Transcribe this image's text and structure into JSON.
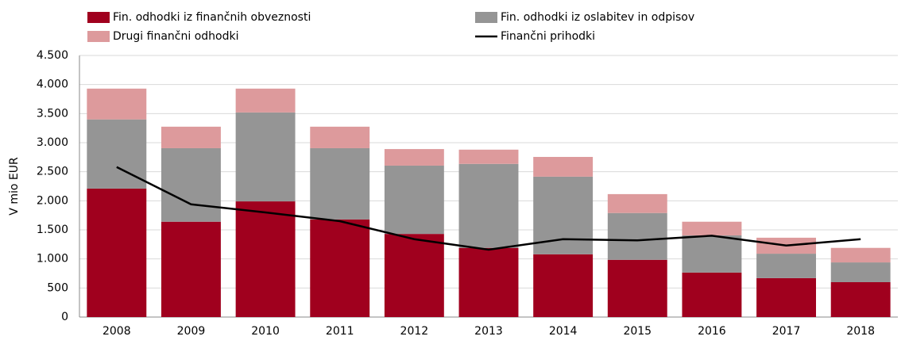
{
  "chart_data": {
    "type": "bar",
    "stacked": true,
    "y_label": "V mio EUR",
    "categories": [
      "2008",
      "2009",
      "2010",
      "2011",
      "2012",
      "2013",
      "2014",
      "2015",
      "2016",
      "2017",
      "2018"
    ],
    "series": [
      {
        "name": "Fin. odhodki iz finančnih obveznosti",
        "color": "#a0001e",
        "values": [
          2210,
          1640,
          1990,
          1680,
          1430,
          1190,
          1080,
          985,
          765,
          670,
          600
        ]
      },
      {
        "name": "Fin. odhodki iz oslabitev in odpisov",
        "color": "#959595",
        "values": [
          1190,
          1265,
          1530,
          1225,
          1175,
          1445,
          1335,
          805,
          640,
          420,
          340
        ]
      },
      {
        "name": "Drugi finančni odhodki",
        "color": "#dd9a9c",
        "values": [
          530,
          370,
          410,
          370,
          285,
          245,
          340,
          325,
          235,
          275,
          250
        ]
      },
      {
        "name": "Finančni prihodki",
        "color": "#000000",
        "type": "line",
        "values": [
          2580,
          1940,
          1800,
          1650,
          1340,
          1160,
          1340,
          1320,
          1400,
          1230,
          1340
        ]
      }
    ],
    "ylim": [
      0,
      4500
    ],
    "yticks": [
      0,
      500,
      {
        "value": 1000,
        "label": "1.000"
      },
      {
        "value": 1500,
        "label": "1.500"
      },
      {
        "value": 2000,
        "label": "2.000"
      },
      {
        "value": 2500,
        "label": "2.500"
      },
      {
        "value": 3000,
        "label": "3.000"
      },
      {
        "value": 3500,
        "label": "3.500"
      },
      {
        "value": 4000,
        "label": "4.000"
      },
      {
        "value": 4500,
        "label": "4.500"
      }
    ],
    "grid": true,
    "legend": "top"
  }
}
